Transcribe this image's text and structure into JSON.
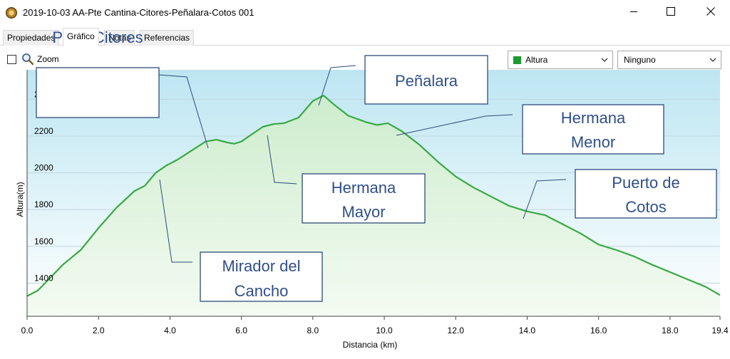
{
  "window": {
    "title": "2019-10-03 AA-Pte Cantina-Citores-Peñalara-Cotos 001",
    "icon": "app-logo-icon",
    "controls": [
      "minimize-icon",
      "maximize-icon",
      "close-icon"
    ]
  },
  "tabs": [
    {
      "label": "Propiedades",
      "active": false
    },
    {
      "label": "Gráfico",
      "active": true
    },
    {
      "label": "Notas",
      "active": false
    },
    {
      "label": "Referencias",
      "active": false
    }
  ],
  "toolbar": {
    "zoom_label": "Zoom",
    "zoom_checked": false,
    "series_select": "Altura",
    "series_color": "#1c9a33",
    "compare_select": "Ninguno"
  },
  "chart_data": {
    "type": "area",
    "xlabel": "Distancia  (km)",
    "ylabel": "Altura(m)",
    "x_ticks": [
      "0.0",
      "2.0",
      "4.0",
      "6.0",
      "8.0",
      "10.0",
      "12.0",
      "14.0",
      "16.0",
      "18.0",
      "19.4"
    ],
    "y_ticks": [
      "1400",
      "1600",
      "1800",
      "2000",
      "2200",
      "2400"
    ],
    "xlim": [
      0,
      19.4
    ],
    "ylim": [
      1220,
      2560
    ],
    "grid": true,
    "line_color": "#3aa845",
    "series": [
      {
        "x": [
          0,
          0.3,
          0.6,
          1.0,
          1.5,
          2.0,
          2.5,
          3.0,
          3.3,
          3.6,
          3.9,
          4.2,
          4.6,
          5.0,
          5.3,
          5.6,
          5.8,
          6.0,
          6.3,
          6.6,
          6.9,
          7.2,
          7.6,
          8.0,
          8.3,
          8.6,
          9.0,
          9.5,
          9.8,
          10.1,
          10.5,
          11.0,
          11.5,
          12.0,
          12.5,
          13.0,
          13.5,
          14.0,
          14.5,
          15.0,
          15.5,
          16.0,
          16.5,
          17.0,
          17.5,
          18.0,
          18.5,
          19.0,
          19.4
        ],
        "y": [
          1330,
          1360,
          1420,
          1500,
          1580,
          1700,
          1810,
          1900,
          1930,
          2000,
          2040,
          2070,
          2120,
          2170,
          2180,
          2165,
          2158,
          2170,
          2210,
          2250,
          2265,
          2270,
          2300,
          2390,
          2420,
          2370,
          2310,
          2275,
          2260,
          2270,
          2225,
          2150,
          2060,
          1980,
          1920,
          1870,
          1820,
          1790,
          1770,
          1720,
          1670,
          1610,
          1580,
          1545,
          1500,
          1460,
          1420,
          1380,
          1335
        ]
      }
    ],
    "annotations": [
      {
        "text": [
          "Peña Citores"
        ]
      },
      {
        "text": [
          "Peñalara"
        ]
      },
      {
        "text": [
          "Hermana",
          "Menor"
        ]
      },
      {
        "text": [
          "Hermana",
          "Mayor"
        ]
      },
      {
        "text": [
          "Puerto de",
          "Cotos"
        ]
      },
      {
        "text": [
          "Mirador del",
          "Cancho"
        ]
      }
    ]
  }
}
